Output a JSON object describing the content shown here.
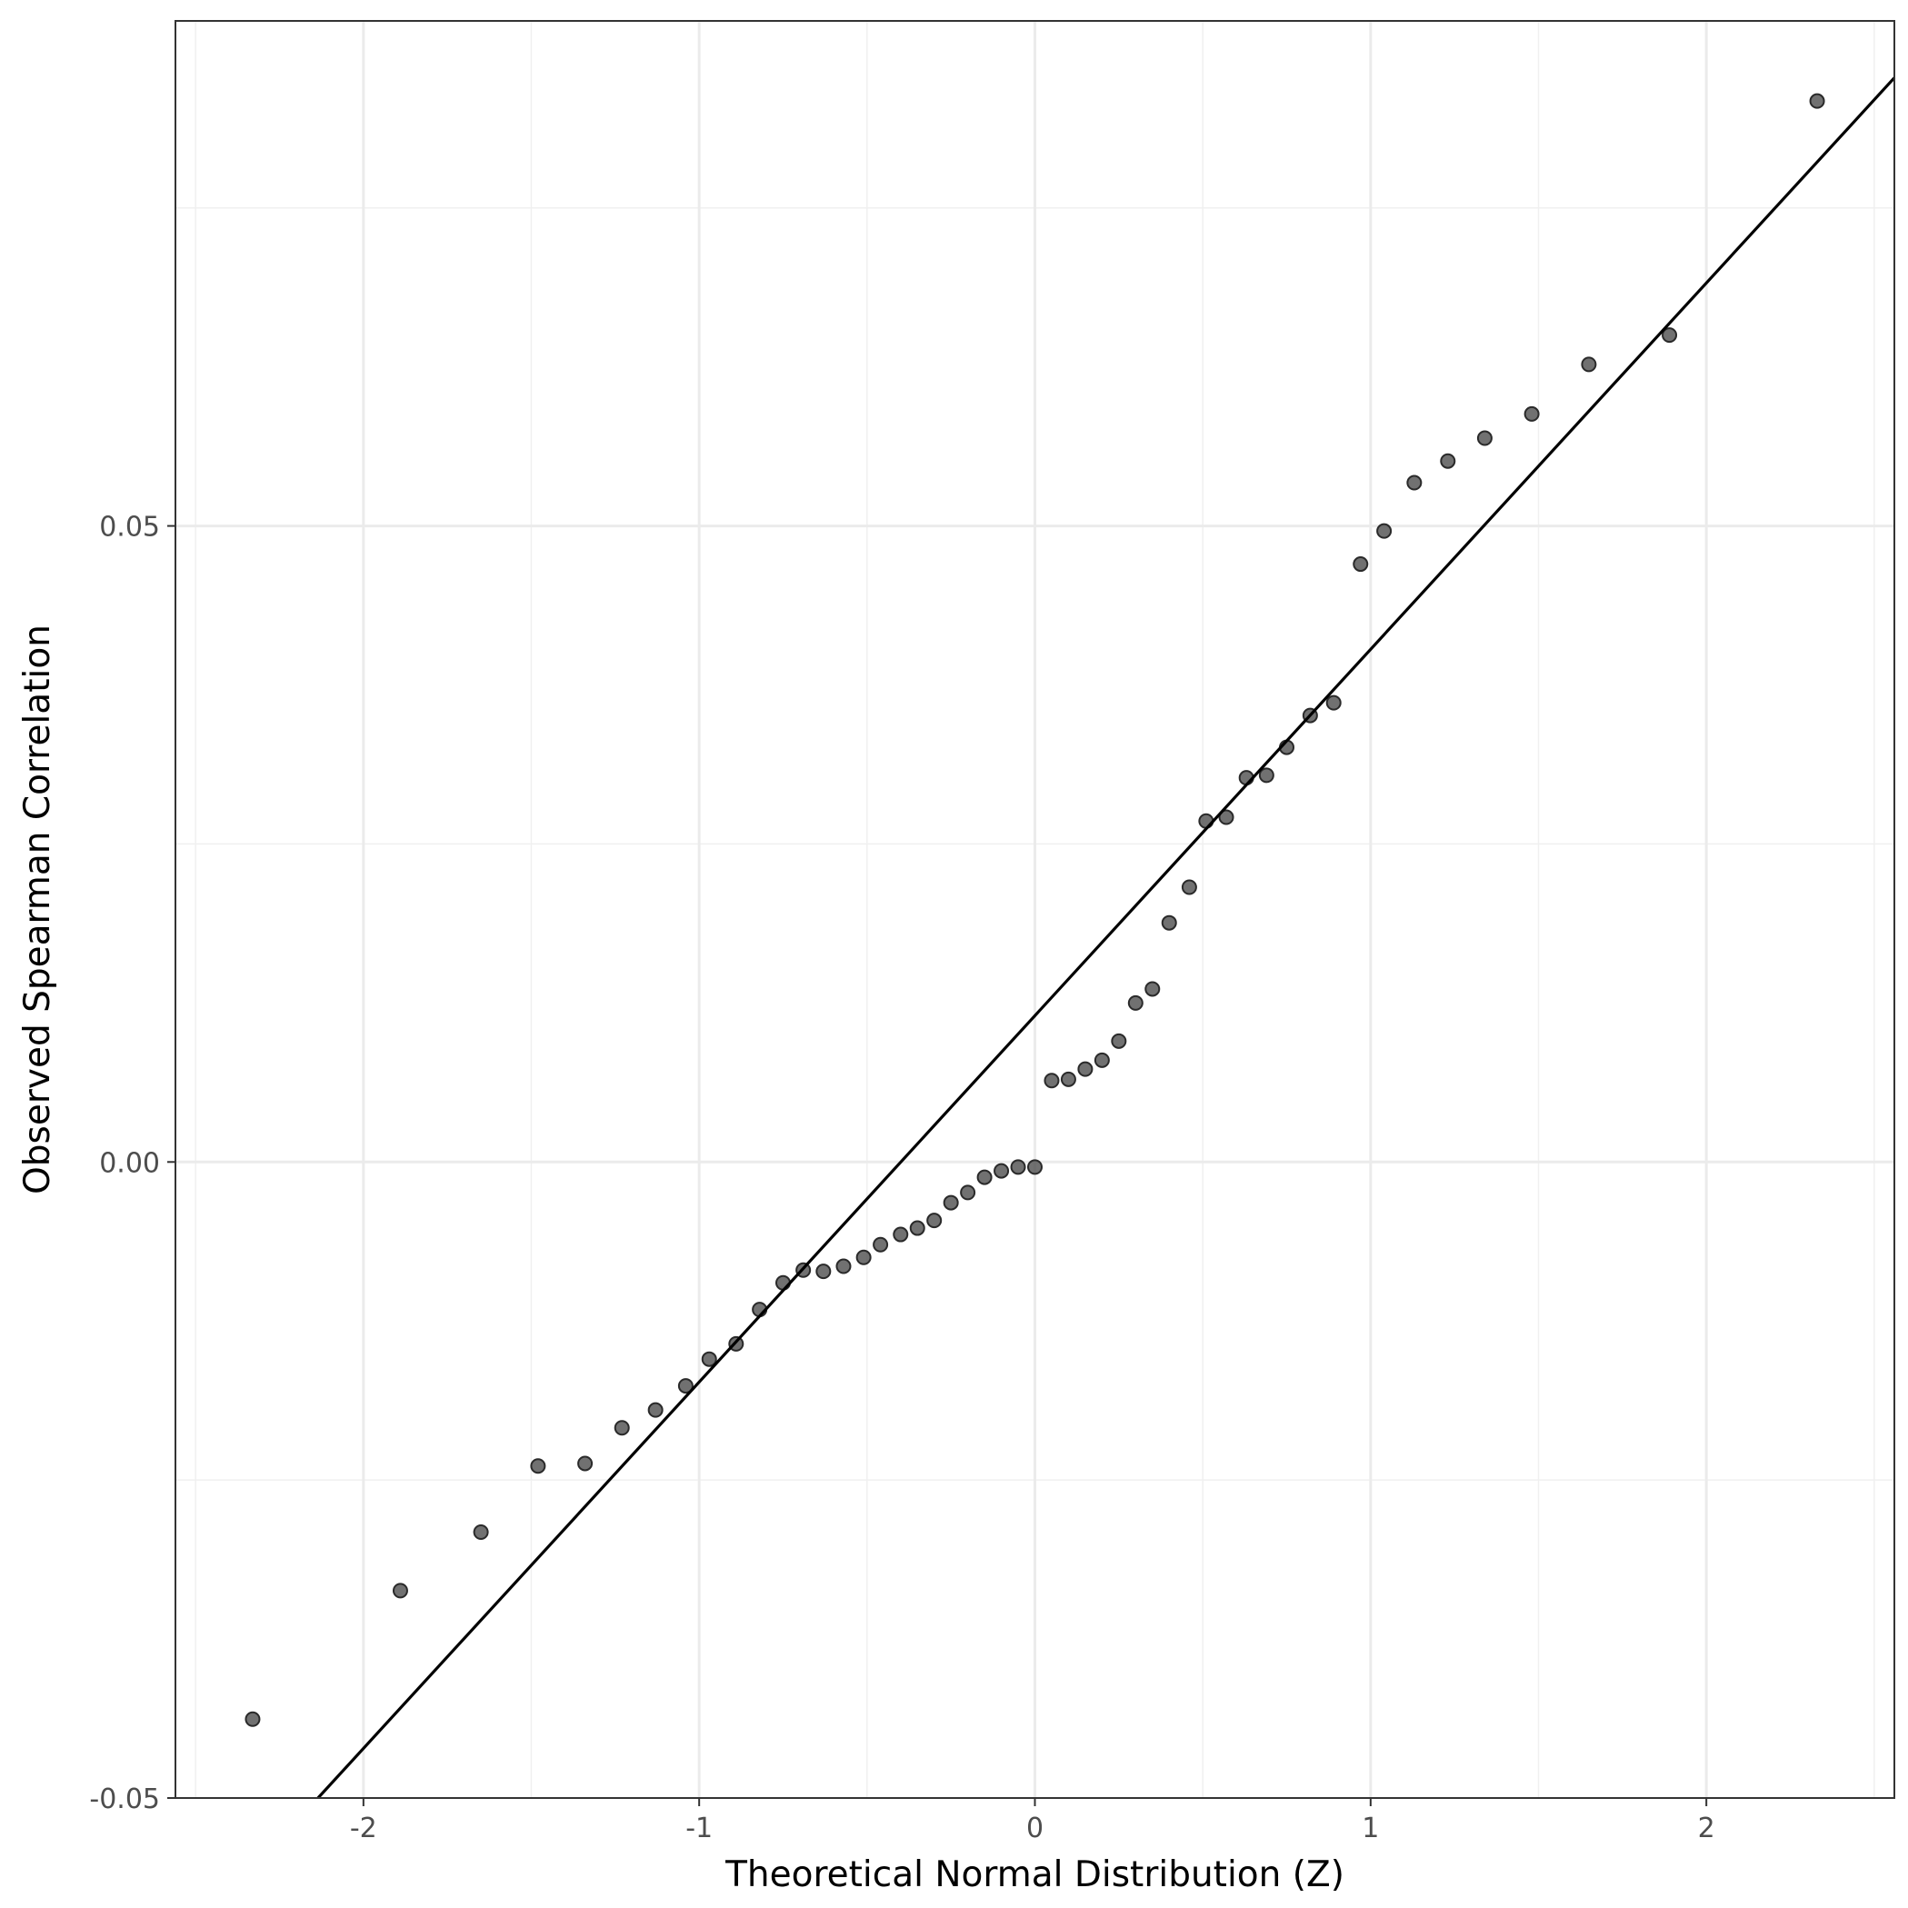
{
  "chart_data": {
    "type": "scatter",
    "title": "",
    "xlabel": "Theoretical Normal Distribution (Z)",
    "ylabel": "Observed Spearman Correlation",
    "xlim": [
      -2.56,
      2.56
    ],
    "ylim": [
      -0.05,
      0.0897
    ],
    "x_ticks": [
      {
        "value": -2,
        "label": "-2"
      },
      {
        "value": -1,
        "label": "-1"
      },
      {
        "value": 0,
        "label": "0"
      },
      {
        "value": 1,
        "label": "1"
      },
      {
        "value": 2,
        "label": "2"
      }
    ],
    "y_ticks": [
      {
        "value": -0.05,
        "label": "-0.05"
      },
      {
        "value": 0.0,
        "label": "0.00"
      },
      {
        "value": 0.05,
        "label": "0.05"
      }
    ],
    "grid": true,
    "series": [
      {
        "x": [
          -2.33,
          -1.89,
          -1.65,
          -1.48,
          -1.34,
          -1.23,
          -1.13,
          -1.04,
          -0.97,
          -0.89,
          -0.82,
          -0.75,
          -0.69,
          -0.63,
          -0.57,
          -0.51,
          -0.46,
          -0.4,
          -0.35,
          -0.3,
          -0.25,
          -0.2,
          -0.15,
          -0.1,
          -0.05,
          0.0,
          0.05,
          0.1,
          0.15,
          0.2,
          0.25,
          0.3,
          0.35,
          0.4,
          0.46,
          0.51,
          0.57,
          0.63,
          0.69,
          0.75,
          0.82,
          0.89,
          0.97,
          1.04,
          1.13,
          1.23,
          1.34,
          1.48,
          1.65,
          1.89,
          2.33
        ],
        "y": [
          -0.0438,
          -0.0337,
          -0.0291,
          -0.0239,
          -0.0237,
          -0.0209,
          -0.0195,
          -0.0176,
          -0.0155,
          -0.0143,
          -0.0116,
          -0.0095,
          -0.0085,
          -0.0086,
          -0.0082,
          -0.0075,
          -0.0065,
          -0.0057,
          -0.0052,
          -0.0046,
          -0.0032,
          -0.0024,
          -0.0012,
          -0.0007,
          -0.0004,
          -0.0004,
          0.0064,
          0.0065,
          0.0073,
          0.008,
          0.0095,
          0.0125,
          0.0136,
          0.0188,
          0.0216,
          0.0268,
          0.0271,
          0.0302,
          0.0304,
          0.0326,
          0.0351,
          0.0361,
          0.047,
          0.0496,
          0.0534,
          0.0551,
          0.0569,
          0.0588,
          0.0627,
          0.065,
          0.0834
        ]
      }
    ],
    "reference_line": {
      "intercept": 0.0115,
      "slope": 0.0288
    }
  }
}
